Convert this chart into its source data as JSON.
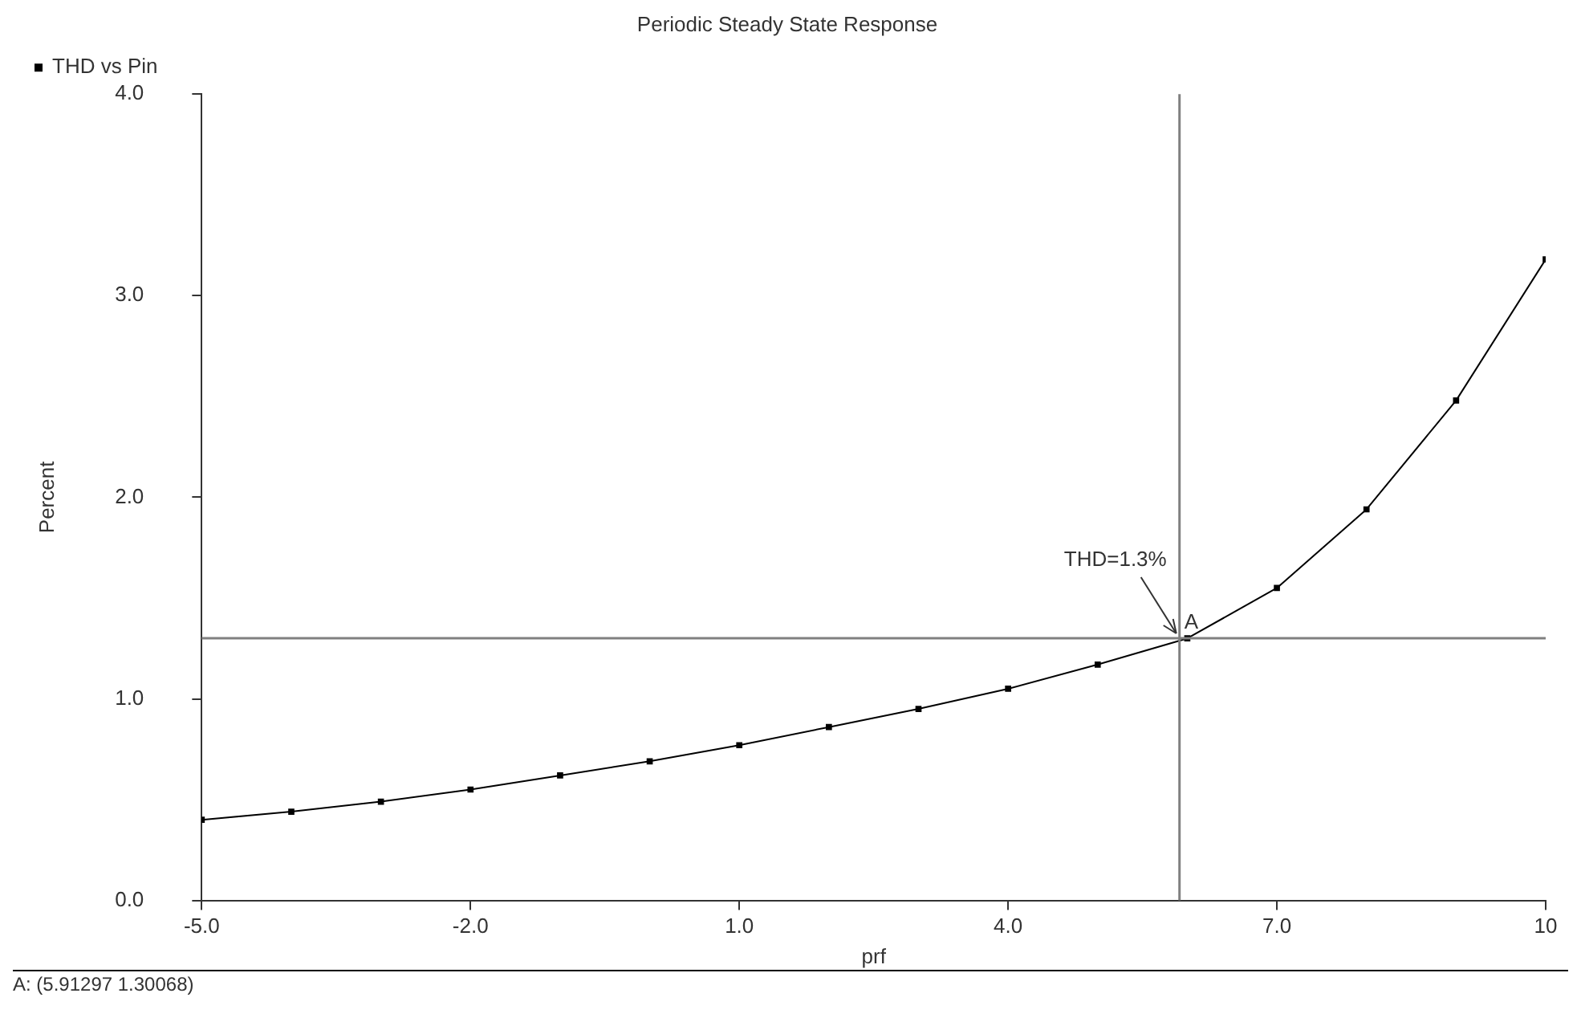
{
  "chart_data": {
    "type": "line",
    "title": "Periodic Steady State Response",
    "xlabel": "prf",
    "ylabel": "Percent",
    "x": [
      -5,
      -4,
      -3,
      -2,
      -1,
      0,
      1,
      2,
      3,
      4,
      5,
      6,
      7,
      8,
      9,
      10
    ],
    "series": [
      {
        "name": "THD vs Pin",
        "color": "#000000",
        "values": [
          0.4,
          0.44,
          0.49,
          0.55,
          0.62,
          0.69,
          0.77,
          0.86,
          0.95,
          1.05,
          1.17,
          1.3,
          1.55,
          1.94,
          2.48,
          3.18
        ]
      }
    ],
    "xlim": [
      -5,
      10
    ],
    "xticks": [
      {
        "value": -5,
        "label": "-5.0"
      },
      {
        "value": -2,
        "label": "-2.0"
      },
      {
        "value": 1,
        "label": "1.0"
      },
      {
        "value": 4,
        "label": "4.0"
      },
      {
        "value": 7,
        "label": "7.0"
      },
      {
        "value": 10,
        "label": "10"
      }
    ],
    "ylim": [
      0,
      4
    ],
    "yticks": [
      {
        "value": 0,
        "label": "0.0"
      },
      {
        "value": 1,
        "label": "1.0"
      },
      {
        "value": 2,
        "label": "2.0"
      },
      {
        "value": 3,
        "label": "3.0"
      },
      {
        "value": 4,
        "label": "4.0"
      }
    ],
    "ref_lines": [
      {
        "axis": "x",
        "value": 5.91297,
        "color": "#808080"
      },
      {
        "axis": "y",
        "value": 1.30068,
        "color": "#808080"
      }
    ],
    "annotations": [
      {
        "text": "THD=1.3%",
        "x": 5.91297,
        "y": 1.30068
      },
      {
        "text": "A",
        "x": 5.91297,
        "y": 1.30068
      },
      "A: (5.91297 1.30068)"
    ],
    "grid": false,
    "legend": "top left",
    "marker": "square",
    "line_style": "solid"
  }
}
